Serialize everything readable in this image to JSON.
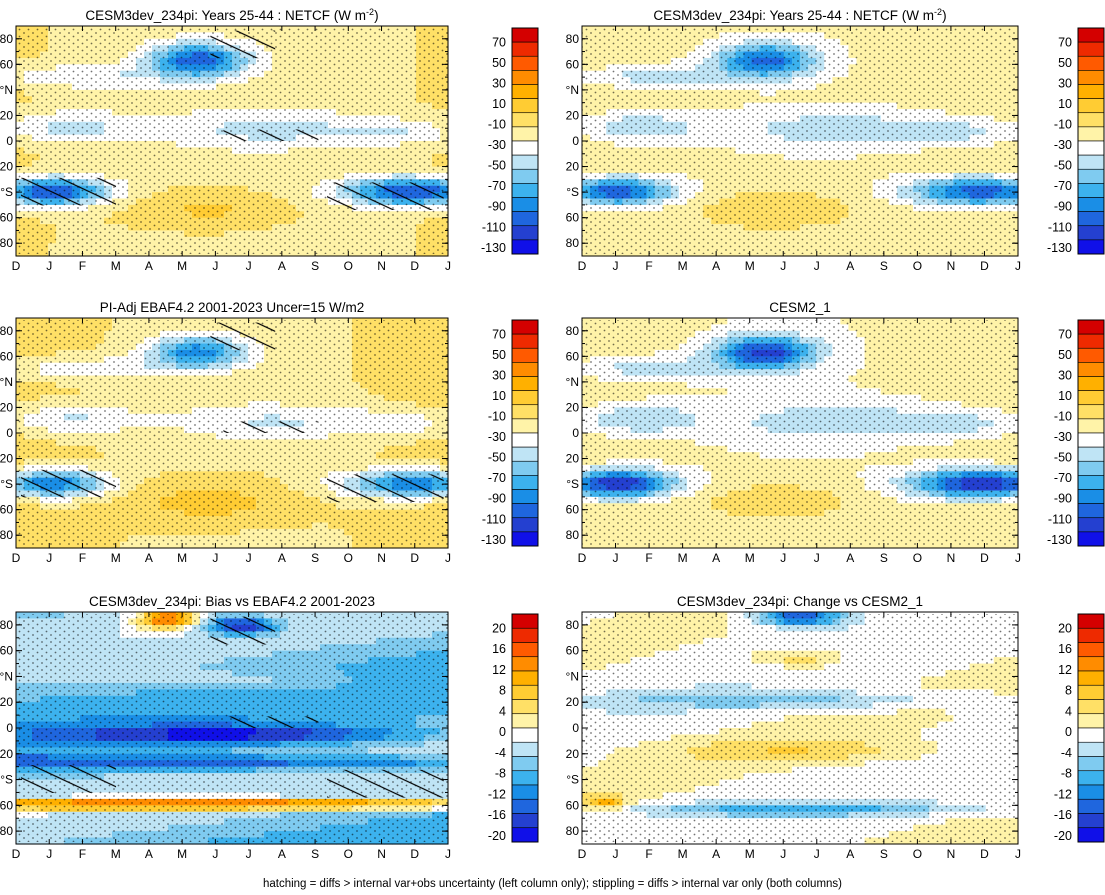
{
  "footer": "hatching = diffs > internal var+obs uncertainty (left column only); stippling = diffs > internal var only (both columns)",
  "chart_data": [
    {
      "type": "heatmap",
      "title": "CESM3dev_234pi: Years 25-44 : NETCF (W m",
      "title_sup": "-2",
      "title_end": ")",
      "x": [
        "D",
        "J",
        "F",
        "M",
        "A",
        "M",
        "J",
        "J",
        "A",
        "S",
        "O",
        "N",
        "D",
        "J"
      ],
      "y_ticks": [
        "80",
        "60",
        "°N",
        "20",
        "0",
        "20",
        "°S",
        "60",
        "80"
      ],
      "ylim": [
        -90,
        90
      ],
      "colorbar": {
        "labels": [
          "70",
          "50",
          "30",
          "10",
          "-10",
          "-30",
          "-50",
          "-70",
          "-90",
          "-110",
          "-130"
        ]
      },
      "stippling": true,
      "hatching": true
    },
    {
      "type": "heatmap",
      "title": "CESM3dev_234pi: Years 25-44 : NETCF (W m",
      "title_sup": "-2",
      "title_end": ")",
      "x": [
        "D",
        "J",
        "F",
        "M",
        "A",
        "M",
        "J",
        "J",
        "A",
        "S",
        "O",
        "N",
        "D",
        "J"
      ],
      "y_ticks": [
        "80",
        "60",
        "°N",
        "20",
        "0",
        "20",
        "°S",
        "60",
        "80"
      ],
      "ylim": [
        -90,
        90
      ],
      "colorbar": {
        "labels": [
          "70",
          "50",
          "30",
          "10",
          "-10",
          "-30",
          "-50",
          "-70",
          "-90",
          "-110",
          "-130"
        ]
      },
      "stippling": true,
      "hatching": false
    },
    {
      "type": "heatmap",
      "title": "PI-Adj EBAF4.2 2001-2023 Uncer=15 W/m2",
      "title_sup": "",
      "title_end": "",
      "x": [
        "D",
        "J",
        "F",
        "M",
        "A",
        "M",
        "J",
        "J",
        "A",
        "S",
        "O",
        "N",
        "D",
        "J"
      ],
      "y_ticks": [
        "80",
        "60",
        "°N",
        "20",
        "0",
        "20",
        "°S",
        "60",
        "80"
      ],
      "ylim": [
        -90,
        90
      ],
      "colorbar": {
        "labels": [
          "70",
          "50",
          "30",
          "10",
          "-10",
          "-30",
          "-50",
          "-70",
          "-90",
          "-110",
          "-130"
        ]
      },
      "stippling": true,
      "hatching": true
    },
    {
      "type": "heatmap",
      "title": "CESM2_1",
      "title_sup": "",
      "title_end": "",
      "x": [
        "D",
        "J",
        "F",
        "M",
        "A",
        "M",
        "J",
        "J",
        "A",
        "S",
        "O",
        "N",
        "D",
        "J"
      ],
      "y_ticks": [
        "80",
        "60",
        "°N",
        "20",
        "0",
        "20",
        "°S",
        "60",
        "80"
      ],
      "ylim": [
        -90,
        90
      ],
      "colorbar": {
        "labels": [
          "70",
          "50",
          "30",
          "10",
          "-10",
          "-30",
          "-50",
          "-70",
          "-90",
          "-110",
          "-130"
        ]
      },
      "stippling": true,
      "hatching": false
    },
    {
      "type": "heatmap",
      "title": "CESM3dev_234pi: Bias vs EBAF4.2 2001-2023",
      "title_sup": "",
      "title_end": "",
      "x": [
        "D",
        "J",
        "F",
        "M",
        "A",
        "M",
        "J",
        "J",
        "A",
        "S",
        "O",
        "N",
        "D",
        "J"
      ],
      "y_ticks": [
        "80",
        "60",
        "°N",
        "20",
        "0",
        "20",
        "°S",
        "60",
        "80"
      ],
      "ylim": [
        -90,
        90
      ],
      "colorbar": {
        "labels": [
          "20",
          "16",
          "12",
          "8",
          "4",
          "0",
          "-4",
          "-8",
          "-12",
          "-16",
          "-20"
        ]
      },
      "stippling": true,
      "hatching": true
    },
    {
      "type": "heatmap",
      "title": "CESM3dev_234pi: Change vs CESM2_1",
      "title_sup": "",
      "title_end": "",
      "x": [
        "D",
        "J",
        "F",
        "M",
        "A",
        "M",
        "J",
        "J",
        "A",
        "S",
        "O",
        "N",
        "D",
        "J"
      ],
      "y_ticks": [
        "80",
        "60",
        "°N",
        "20",
        "0",
        "20",
        "°S",
        "60",
        "80"
      ],
      "ylim": [
        -90,
        90
      ],
      "colorbar": {
        "labels": [
          "20",
          "16",
          "12",
          "8",
          "4",
          "0",
          "-4",
          "-8",
          "-12",
          "-16",
          "-20"
        ]
      },
      "stippling": true,
      "hatching": false
    }
  ],
  "palette": [
    "#d40000",
    "#ee2a00",
    "#ff5a00",
    "#ff8c00",
    "#ffb000",
    "#ffcc33",
    "#ffe066",
    "#fff3a8",
    "#ffffff",
    "#bfe4f5",
    "#7fcbf0",
    "#3cb2ee",
    "#1a8ee6",
    "#1f66de",
    "#2440d0",
    "#1010e8"
  ]
}
